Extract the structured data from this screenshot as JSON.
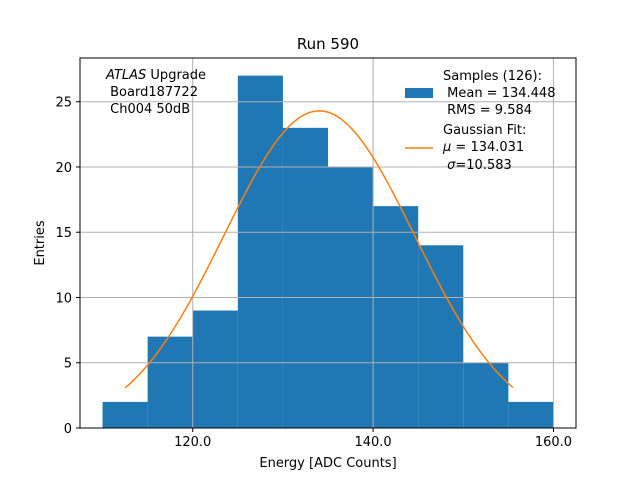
{
  "chart_data": {
    "type": "bar",
    "title": "Run 590",
    "xlabel": "Energy [ADC Counts]",
    "ylabel": "Entries",
    "xlim": [
      107.5,
      162.5
    ],
    "ylim": [
      0,
      28.35
    ],
    "grid": true,
    "xticks": [
      120,
      140,
      160
    ],
    "xtick_labels": [
      "120.0",
      "140.0",
      "160.0"
    ],
    "yticks": [
      0,
      5,
      10,
      15,
      20,
      25
    ],
    "ytick_labels": [
      "0",
      "5",
      "10",
      "15",
      "20",
      "25"
    ],
    "bin_edges": [
      110,
      115,
      120,
      125,
      130,
      135,
      140,
      145,
      150,
      155,
      160
    ],
    "counts": [
      2,
      7,
      9,
      27,
      23,
      20,
      17,
      14,
      5,
      2
    ],
    "fit": {
      "mu": 134.031,
      "sigma": 10.583,
      "amplitude": 24.3,
      "x_range": [
        112.5,
        155.5
      ]
    },
    "annotation": [
      "Upgrade",
      " Board187722",
      " Ch004 50dB"
    ],
    "annotation_italic": "ATLAS",
    "legend_position": "top-right",
    "legend": {
      "samples": [
        "Samples (126):",
        " Mean = 134.448",
        " RMS = 9.584"
      ],
      "fit_title": "Gaussian Fit:",
      "fit_mu": " = 134.031",
      "fit_sigma": "=10.583"
    },
    "colors": {
      "bars": "#1f77b4",
      "fit": "#ff7f0e",
      "grid": "#b0b0b0"
    }
  }
}
